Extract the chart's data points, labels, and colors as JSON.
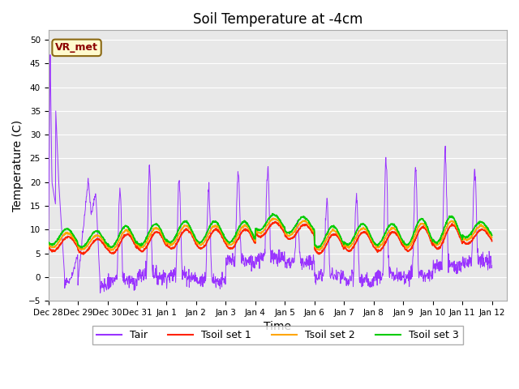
{
  "title": "Soil Temperature at -4cm",
  "xlabel": "Time",
  "ylabel": "Temperature (C)",
  "ylim": [
    -5,
    52
  ],
  "yticks": [
    -5,
    0,
    5,
    10,
    15,
    20,
    25,
    30,
    35,
    40,
    45,
    50
  ],
  "annotation_text": "VR_met",
  "annotation_color": "#8B0000",
  "annotation_bg": "#FFFACD",
  "annotation_border": "#8B6914",
  "colors": {
    "Tair": "#9933FF",
    "Tsoil1": "#FF2200",
    "Tsoil2": "#FFA500",
    "Tsoil3": "#00CC00"
  },
  "bg_color": "#E8E8E8",
  "legend_labels": [
    "Tair",
    "Tsoil set 1",
    "Tsoil set 2",
    "Tsoil set 3"
  ],
  "x_tick_labels": [
    "Dec 28",
    "Dec 29",
    "Dec 30",
    "Dec 31",
    "Jan 1",
    "Jan 2",
    "Jan 3",
    "Jan 4",
    "Jan 5",
    "Jan 6",
    "Jan 7",
    "Jan 8",
    "Jan 9",
    "Jan 10",
    "Jan 11",
    "Jan 12"
  ]
}
